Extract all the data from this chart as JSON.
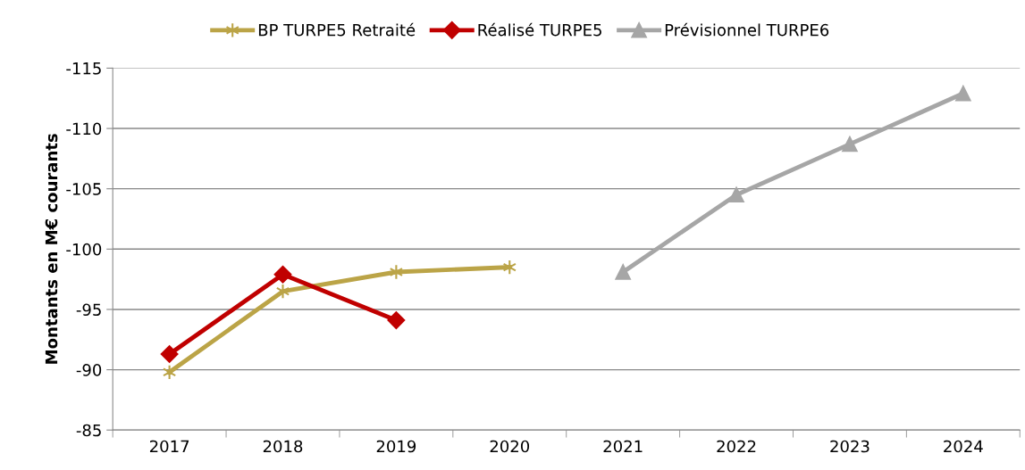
{
  "chart_data": {
    "type": "line",
    "ylabel": "Montants en M€ courants",
    "categories": [
      "2017",
      "2018",
      "2019",
      "2020",
      "2021",
      "2022",
      "2023",
      "2024"
    ],
    "series": [
      {
        "name": "BP TURPE5 Retraité",
        "color": "#bba447",
        "marker": "cross",
        "values": [
          -89.8,
          -96.5,
          -98.1,
          -98.5,
          null,
          null,
          null,
          null
        ]
      },
      {
        "name": "Réalisé TURPE5",
        "color": "#c00000",
        "marker": "diamond",
        "values": [
          -91.3,
          -97.9,
          -94.1,
          null,
          null,
          null,
          null,
          null
        ]
      },
      {
        "name": "Prévisionnel TURPE6",
        "color": "#a6a6a6",
        "marker": "triangle",
        "values": [
          null,
          null,
          null,
          null,
          -98.1,
          -104.5,
          -108.7,
          -112.9
        ]
      }
    ],
    "ylim": [
      -85,
      -115
    ],
    "yticks": [
      -85,
      -90,
      -95,
      -100,
      -105,
      -110,
      -115
    ],
    "grid": "y",
    "legend": "top",
    "line_style": "solid"
  }
}
